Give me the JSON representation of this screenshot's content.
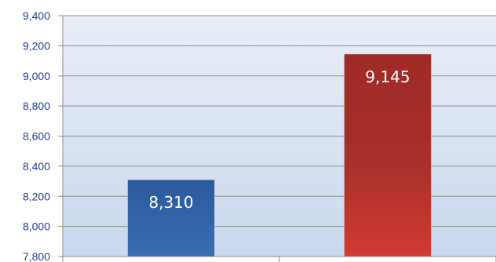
{
  "chart_data": {
    "type": "bar",
    "title": "",
    "xlabel": "",
    "ylabel": "",
    "categories": [
      "",
      ""
    ],
    "values": [
      8310,
      9145
    ],
    "data_labels": [
      "8,310",
      "9,145"
    ],
    "bar_colors": [
      "#2e5fa3",
      "#b43030"
    ],
    "ylim": [
      7800,
      9400
    ],
    "yticks": [
      7800,
      8000,
      8200,
      8400,
      8600,
      8800,
      9000,
      9200,
      9400
    ],
    "ytick_labels": [
      "7,800",
      "8,000",
      "8,200",
      "8,400",
      "8,600",
      "8,800",
      "9,000",
      "9,200",
      "9,400"
    ],
    "grid": true,
    "legend": "none"
  }
}
